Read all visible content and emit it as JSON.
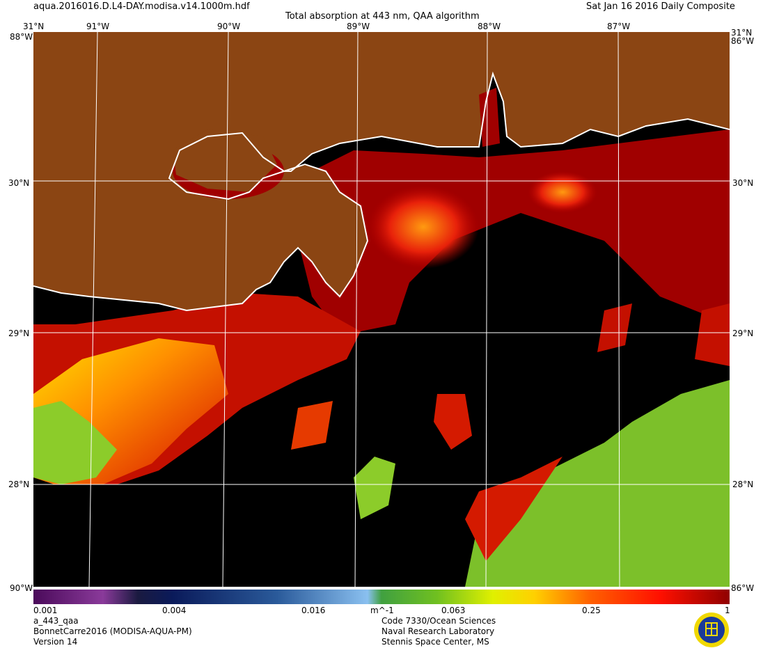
{
  "header": {
    "filename": "aqua.2016016.D.L4-DAY.modisa.v14.1000m.hdf",
    "title": "Total absorption at 443 nm, QAA algorithm",
    "date": "Sat Jan 16 2016 Daily Composite"
  },
  "map": {
    "lon_labels": [
      "91°W",
      "90°W",
      "89°W",
      "88°W",
      "87°W"
    ],
    "lat_labels": [
      "30°N",
      "29°N",
      "28°N"
    ],
    "corner_top": "31°N",
    "corner_top_right": "31°N",
    "corner_w_top_left": "88°W",
    "corner_w_top_right": "86°W",
    "corner_bottom_left": "90°W",
    "corner_bottom_right": "86°W",
    "colors": {
      "land": "#8b4513",
      "ocean_nodata": "#000000",
      "coast": "#ffffff",
      "grid": "#ffffff"
    }
  },
  "colorbar": {
    "tick_labels": [
      "0.001",
      "0.004",
      "0.016",
      "0.063",
      "0.25",
      "1"
    ],
    "unit": "m^-1"
  },
  "footer": {
    "left": [
      "a_443_qaa",
      "BonnetCarre2016 (MODISA-AQUA-PM)",
      "Version 14"
    ],
    "right": [
      "Code 7330/Ocean Sciences",
      "Naval Research Laboratory",
      "Stennis Space Center, MS"
    ]
  }
}
